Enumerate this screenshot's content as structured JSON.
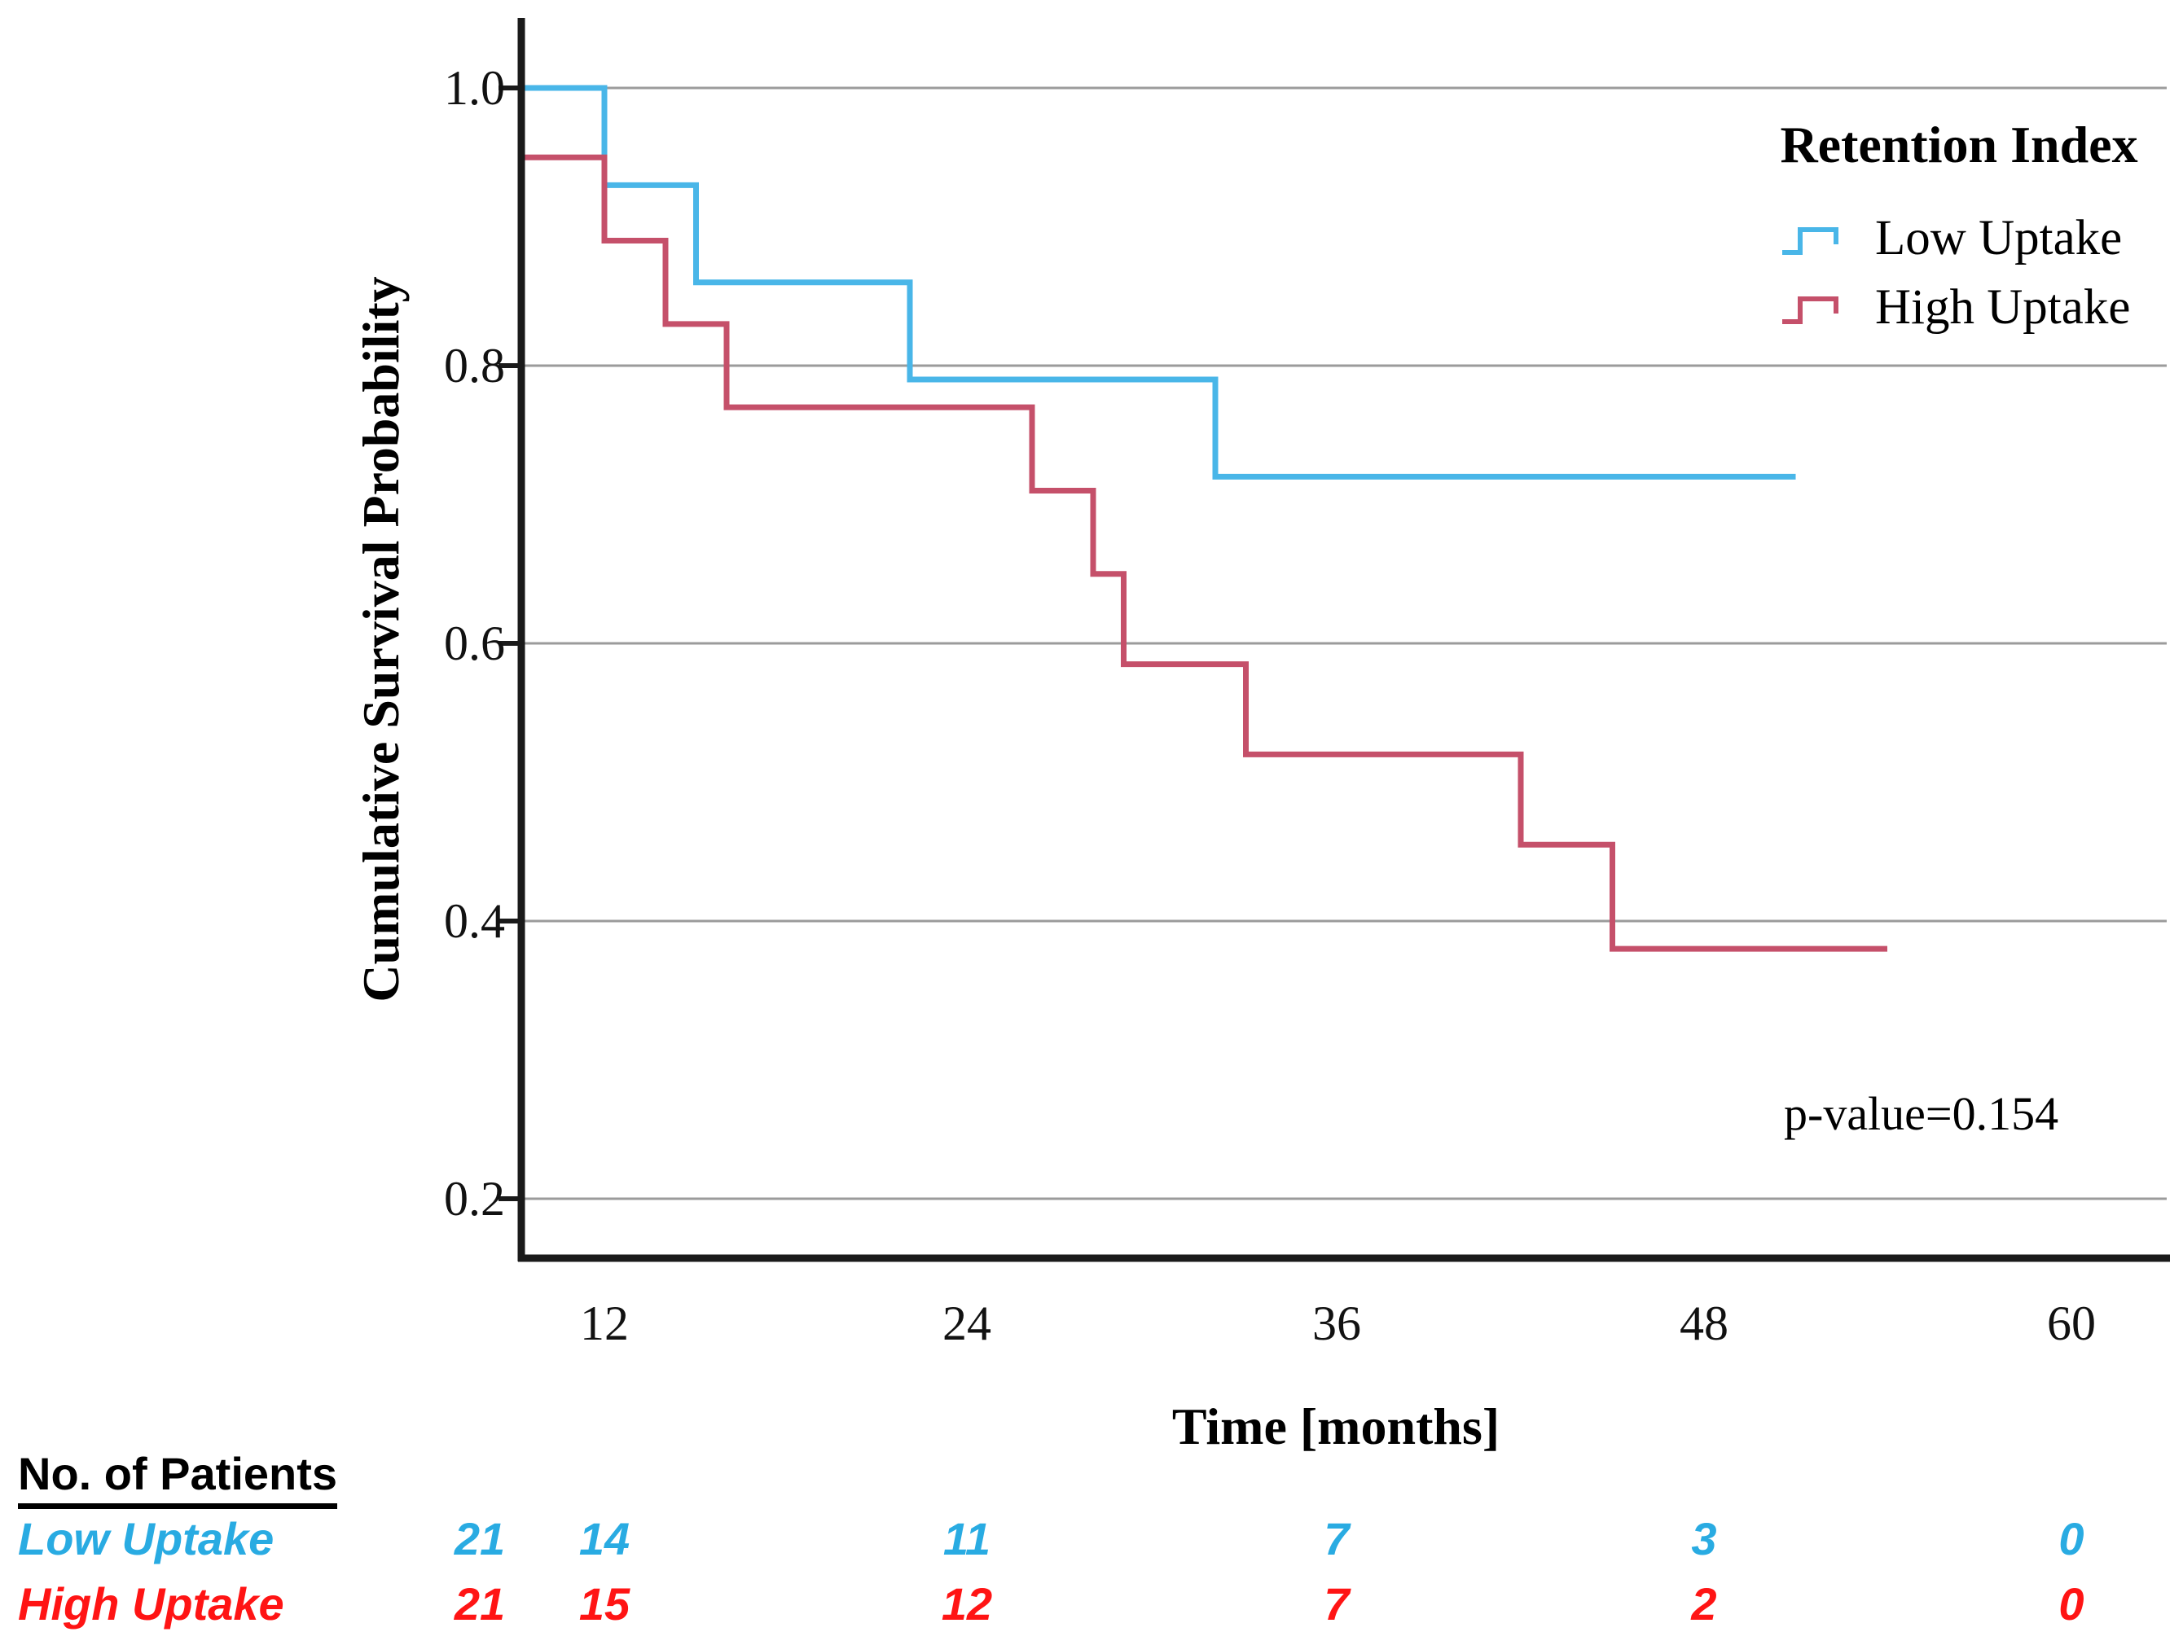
{
  "figure": {
    "background": "#ffffff",
    "p_value_annotation": "p-value=0.154"
  },
  "chart": {
    "y_axis": {
      "title": "Cumulative Survival Probability",
      "ticks": [
        "1.0",
        "0.8",
        "0.6",
        "0.4",
        "0.2"
      ]
    },
    "x_axis": {
      "title": "Time [months]",
      "ticks": [
        "12",
        "24",
        "36",
        "48",
        "60"
      ]
    },
    "legend": {
      "title": "Retention Index",
      "entries": [
        {
          "label": "Low Uptake",
          "color": "#49b6e8"
        },
        {
          "label": "High Uptake",
          "color": "#c5506a"
        }
      ]
    }
  },
  "chart_data": {
    "type": "line",
    "subtype": "kaplan-meier-step",
    "title": "",
    "xlabel": "Time [months]",
    "ylabel": "Cumulative Survival Probability",
    "xlim": [
      9.3,
      63
    ],
    "ylim": [
      0.13,
      1.05
    ],
    "x_ticks": [
      12,
      24,
      36,
      48,
      60
    ],
    "y_ticks": [
      1.0,
      0.8,
      0.6,
      0.4,
      0.2
    ],
    "grid": "horizontal",
    "legend_position": "top-right",
    "style": {
      "grid_color": "#9b9b9b",
      "axis_color": "#1a1a1a"
    },
    "series": [
      {
        "name": "Low Uptake",
        "color": "#49b6e8",
        "start": {
          "t": 9.3,
          "s": 1.0
        },
        "drops": [
          {
            "t": 12,
            "s": 0.93
          },
          {
            "t": 15,
            "s": 0.86
          },
          {
            "t": 22,
            "s": 0.79
          },
          {
            "t": 32,
            "s": 0.72
          }
        ],
        "end_t": 51
      },
      {
        "name": "High Uptake",
        "color": "#c5506a",
        "start": {
          "t": 9.3,
          "s": 0.95
        },
        "drops": [
          {
            "t": 12,
            "s": 0.89
          },
          {
            "t": 14,
            "s": 0.83
          },
          {
            "t": 16,
            "s": 0.77
          },
          {
            "t": 26,
            "s": 0.71
          },
          {
            "t": 28,
            "s": 0.65
          },
          {
            "t": 29,
            "s": 0.585
          },
          {
            "t": 33,
            "s": 0.52
          },
          {
            "t": 42,
            "s": 0.455
          },
          {
            "t": 45,
            "s": 0.38
          }
        ],
        "end_t": 54
      }
    ],
    "annotations": [
      {
        "text": "p-value=0.154",
        "x": 52,
        "y": 0.26
      }
    ]
  },
  "patients_table": {
    "header": "No. of Patients",
    "rows": [
      {
        "label": "Low Uptake",
        "color": "#29abe2",
        "counts": [
          "21",
          "14",
          "11",
          "7",
          "3",
          "0"
        ]
      },
      {
        "label": "High Uptake",
        "color": "#ff1414",
        "counts": [
          "21",
          "15",
          "12",
          "7",
          "2",
          "0"
        ]
      }
    ]
  }
}
